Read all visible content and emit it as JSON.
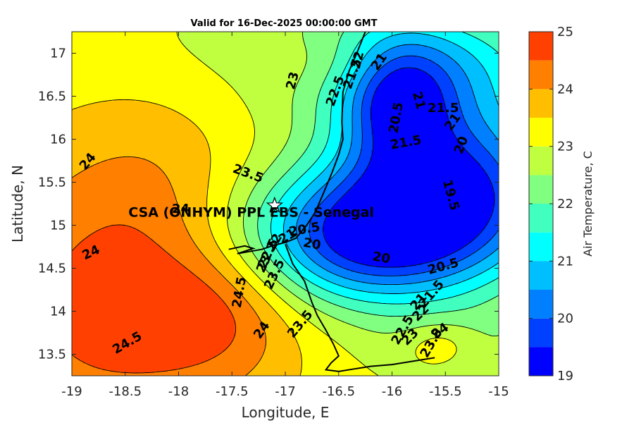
{
  "chart_data": {
    "type": "contour_map",
    "title": "Valid for 16-Dec-2025 00:00:00 GMT",
    "xlabel": "Longitude, E",
    "ylabel": "Latitude, N",
    "xlim": [
      -19,
      -15
    ],
    "ylim": [
      13.25,
      17.25
    ],
    "xticks": [
      -19,
      -18.5,
      -18,
      -17.5,
      -17,
      -16.5,
      -16,
      -15.5,
      -15
    ],
    "yticks": [
      13.5,
      14,
      14.5,
      15,
      15.5,
      16,
      16.5,
      17
    ],
    "xtick_labels": [
      "-19",
      "-18.5",
      "-18",
      "-17.5",
      "-17",
      "-16.5",
      "-16",
      "-15.5",
      "-15"
    ],
    "ytick_labels": [
      "13.5",
      "14",
      "14.5",
      "15",
      "15.5",
      "16",
      "16.5",
      "17"
    ],
    "colorbar": {
      "label": "Air Temperature, C",
      "range": [
        19,
        25
      ],
      "levels": [
        19,
        19.5,
        20,
        20.5,
        21,
        21.5,
        22,
        22.5,
        23,
        23.5,
        24,
        24.5,
        25
      ],
      "colors": [
        "#0000ff",
        "#0040ff",
        "#0080ff",
        "#00bfff",
        "#00ffff",
        "#40ffbf",
        "#80ff80",
        "#bfff40",
        "#ffff00",
        "#ffbf00",
        "#ff8000",
        "#ff4000",
        "#ff0000"
      ],
      "tick_values": [
        19,
        20,
        21,
        22,
        23,
        24,
        25
      ],
      "tick_labels": [
        "19",
        "20",
        "21",
        "22",
        "23",
        "24",
        "25"
      ]
    },
    "site": {
      "label": "CSA (ONHYM) PPL EBS  - Senegal",
      "lon": -17.1,
      "lat": 15.23,
      "label_lon": -18.47,
      "label_lat": 15.1
    },
    "contour_labels": [
      {
        "text": "23",
        "lon": -16.93,
        "lat": 16.68,
        "rot": -75
      },
      {
        "text": "22.5",
        "lon": -16.53,
        "lat": 16.56,
        "rot": -70
      },
      {
        "text": "22",
        "lon": -16.32,
        "lat": 16.92,
        "rot": -75
      },
      {
        "text": "21.5",
        "lon": -16.37,
        "lat": 16.76,
        "rot": -70
      },
      {
        "text": "21",
        "lon": -16.12,
        "lat": 16.9,
        "rot": -55
      },
      {
        "text": "21",
        "lon": -15.75,
        "lat": 16.45,
        "rot": 75
      },
      {
        "text": "20.5",
        "lon": -15.96,
        "lat": 16.25,
        "rot": -80
      },
      {
        "text": "21.5",
        "lon": -15.52,
        "lat": 16.36,
        "rot": 0
      },
      {
        "text": "21",
        "lon": -15.43,
        "lat": 16.2,
        "rot": -55
      },
      {
        "text": "21.5",
        "lon": -15.87,
        "lat": 15.96,
        "rot": -10
      },
      {
        "text": "20",
        "lon": -15.35,
        "lat": 15.93,
        "rot": -70
      },
      {
        "text": "19.5",
        "lon": -15.45,
        "lat": 15.35,
        "rot": 75
      },
      {
        "text": "24",
        "lon": -18.85,
        "lat": 15.74,
        "rot": -50
      },
      {
        "text": "23.5",
        "lon": -17.35,
        "lat": 15.6,
        "rot": 20
      },
      {
        "text": "24",
        "lon": -17.98,
        "lat": 15.19,
        "rot": 0
      },
      {
        "text": "24",
        "lon": -18.82,
        "lat": 14.68,
        "rot": -25
      },
      {
        "text": "20.5",
        "lon": -16.82,
        "lat": 14.95,
        "rot": -10
      },
      {
        "text": "20",
        "lon": -16.75,
        "lat": 14.78,
        "rot": 10
      },
      {
        "text": "21",
        "lon": -16.98,
        "lat": 14.87,
        "rot": -30
      },
      {
        "text": "22",
        "lon": -17.1,
        "lat": 14.8,
        "rot": -60
      },
      {
        "text": "22.5",
        "lon": -17.16,
        "lat": 14.67,
        "rot": -65
      },
      {
        "text": "23",
        "lon": -17.2,
        "lat": 14.55,
        "rot": -65
      },
      {
        "text": "23.5",
        "lon": -17.1,
        "lat": 14.43,
        "rot": -65
      },
      {
        "text": "20",
        "lon": -16.1,
        "lat": 14.62,
        "rot": 10
      },
      {
        "text": "20.5",
        "lon": -15.52,
        "lat": 14.52,
        "rot": -15
      },
      {
        "text": "24.5",
        "lon": -17.43,
        "lat": 14.22,
        "rot": -80
      },
      {
        "text": "24",
        "lon": -17.22,
        "lat": 13.78,
        "rot": -55
      },
      {
        "text": "23.5",
        "lon": -16.86,
        "lat": 13.85,
        "rot": -50
      },
      {
        "text": "24.5",
        "lon": -18.48,
        "lat": 13.63,
        "rot": -30
      },
      {
        "text": "21",
        "lon": -15.75,
        "lat": 14.11,
        "rot": -50
      },
      {
        "text": "21.5",
        "lon": -15.63,
        "lat": 14.2,
        "rot": -50
      },
      {
        "text": "22",
        "lon": -15.73,
        "lat": 13.98,
        "rot": -45
      },
      {
        "text": "22.5",
        "lon": -15.9,
        "lat": 13.78,
        "rot": -60
      },
      {
        "text": "23",
        "lon": -15.83,
        "lat": 13.7,
        "rot": -45
      },
      {
        "text": "23.5",
        "lon": -15.63,
        "lat": 13.63,
        "rot": -60
      },
      {
        "text": "24",
        "lon": -15.55,
        "lat": 13.77,
        "rot": -35
      }
    ],
    "temperature_field": {
      "base": 23.2,
      "components": [
        {
          "type": "gauss",
          "lon": -18.7,
          "lat": 14.0,
          "sx": 1.0,
          "sy": 1.2,
          "amp": 1.45
        },
        {
          "type": "gauss",
          "lon": -17.6,
          "lat": 14.0,
          "sx": 0.55,
          "sy": 0.55,
          "amp": 0.9
        },
        {
          "type": "gauss",
          "lon": -18.3,
          "lat": 15.5,
          "sx": 0.6,
          "sy": 0.8,
          "amp": 0.4
        },
        {
          "type": "gauss",
          "lon": -17.6,
          "lat": 17.2,
          "sx": 1.4,
          "sy": 0.45,
          "amp": -0.2
        },
        {
          "type": "gauss",
          "lon": -15.45,
          "lat": 15.4,
          "sx": 0.75,
          "sy": 0.75,
          "amp": -3.8
        },
        {
          "type": "gauss",
          "lon": -16.4,
          "lat": 14.85,
          "sx": 0.75,
          "sy": 0.55,
          "amp": -3.2
        },
        {
          "type": "gauss",
          "lon": -15.95,
          "lat": 16.4,
          "sx": 0.35,
          "sy": 0.5,
          "amp": -2.2
        },
        {
          "type": "gauss",
          "lon": -15.8,
          "lat": 16.9,
          "sx": 0.9,
          "sy": 0.5,
          "amp": -2.0
        },
        {
          "type": "gauss",
          "lon": -15.55,
          "lat": 13.6,
          "sx": 0.25,
          "sy": 0.2,
          "amp": 0.8
        },
        {
          "type": "gauss",
          "lon": -15.3,
          "lat": 13.5,
          "sx": 0.6,
          "sy": 0.35,
          "amp": -0.6
        },
        {
          "type": "gauss",
          "lon": -16.5,
          "lat": 16.9,
          "sx": 0.5,
          "sy": 0.3,
          "amp": 0.8
        }
      ],
      "coastal_gradient": {
        "lon": -16.85,
        "lat": 15.0,
        "width": 0.22,
        "drop": 1.6
      }
    },
    "coastline": [
      [
        -17.53,
        14.72
      ],
      [
        -17.38,
        14.76
      ],
      [
        -17.3,
        14.73
      ],
      [
        -17.45,
        14.67
      ],
      [
        -17.22,
        14.72
      ],
      [
        -17.1,
        14.77
      ],
      [
        -17.0,
        14.8
      ],
      [
        -16.9,
        14.85
      ],
      [
        -16.8,
        15.0
      ],
      [
        -16.72,
        15.15
      ],
      [
        -16.65,
        15.35
      ],
      [
        -16.56,
        15.62
      ],
      [
        -16.5,
        15.82
      ],
      [
        -16.46,
        16.0
      ],
      [
        -16.47,
        16.2
      ],
      [
        -16.46,
        16.55
      ],
      [
        -16.4,
        16.8
      ],
      [
        -16.33,
        17.0
      ],
      [
        -16.25,
        17.25
      ]
    ],
    "coastline_south": [
      [
        -17.0,
        14.78
      ],
      [
        -16.93,
        14.55
      ],
      [
        -16.82,
        14.35
      ],
      [
        -16.75,
        14.1
      ],
      [
        -16.7,
        13.95
      ],
      [
        -16.62,
        13.78
      ],
      [
        -16.55,
        13.62
      ],
      [
        -16.5,
        13.48
      ],
      [
        -16.57,
        13.4
      ],
      [
        -16.62,
        13.32
      ],
      [
        -16.5,
        13.3
      ],
      [
        -16.35,
        13.33
      ],
      [
        -16.2,
        13.36
      ],
      [
        -16.0,
        13.38
      ],
      [
        -15.8,
        13.42
      ],
      [
        -15.6,
        13.46
      ]
    ]
  }
}
